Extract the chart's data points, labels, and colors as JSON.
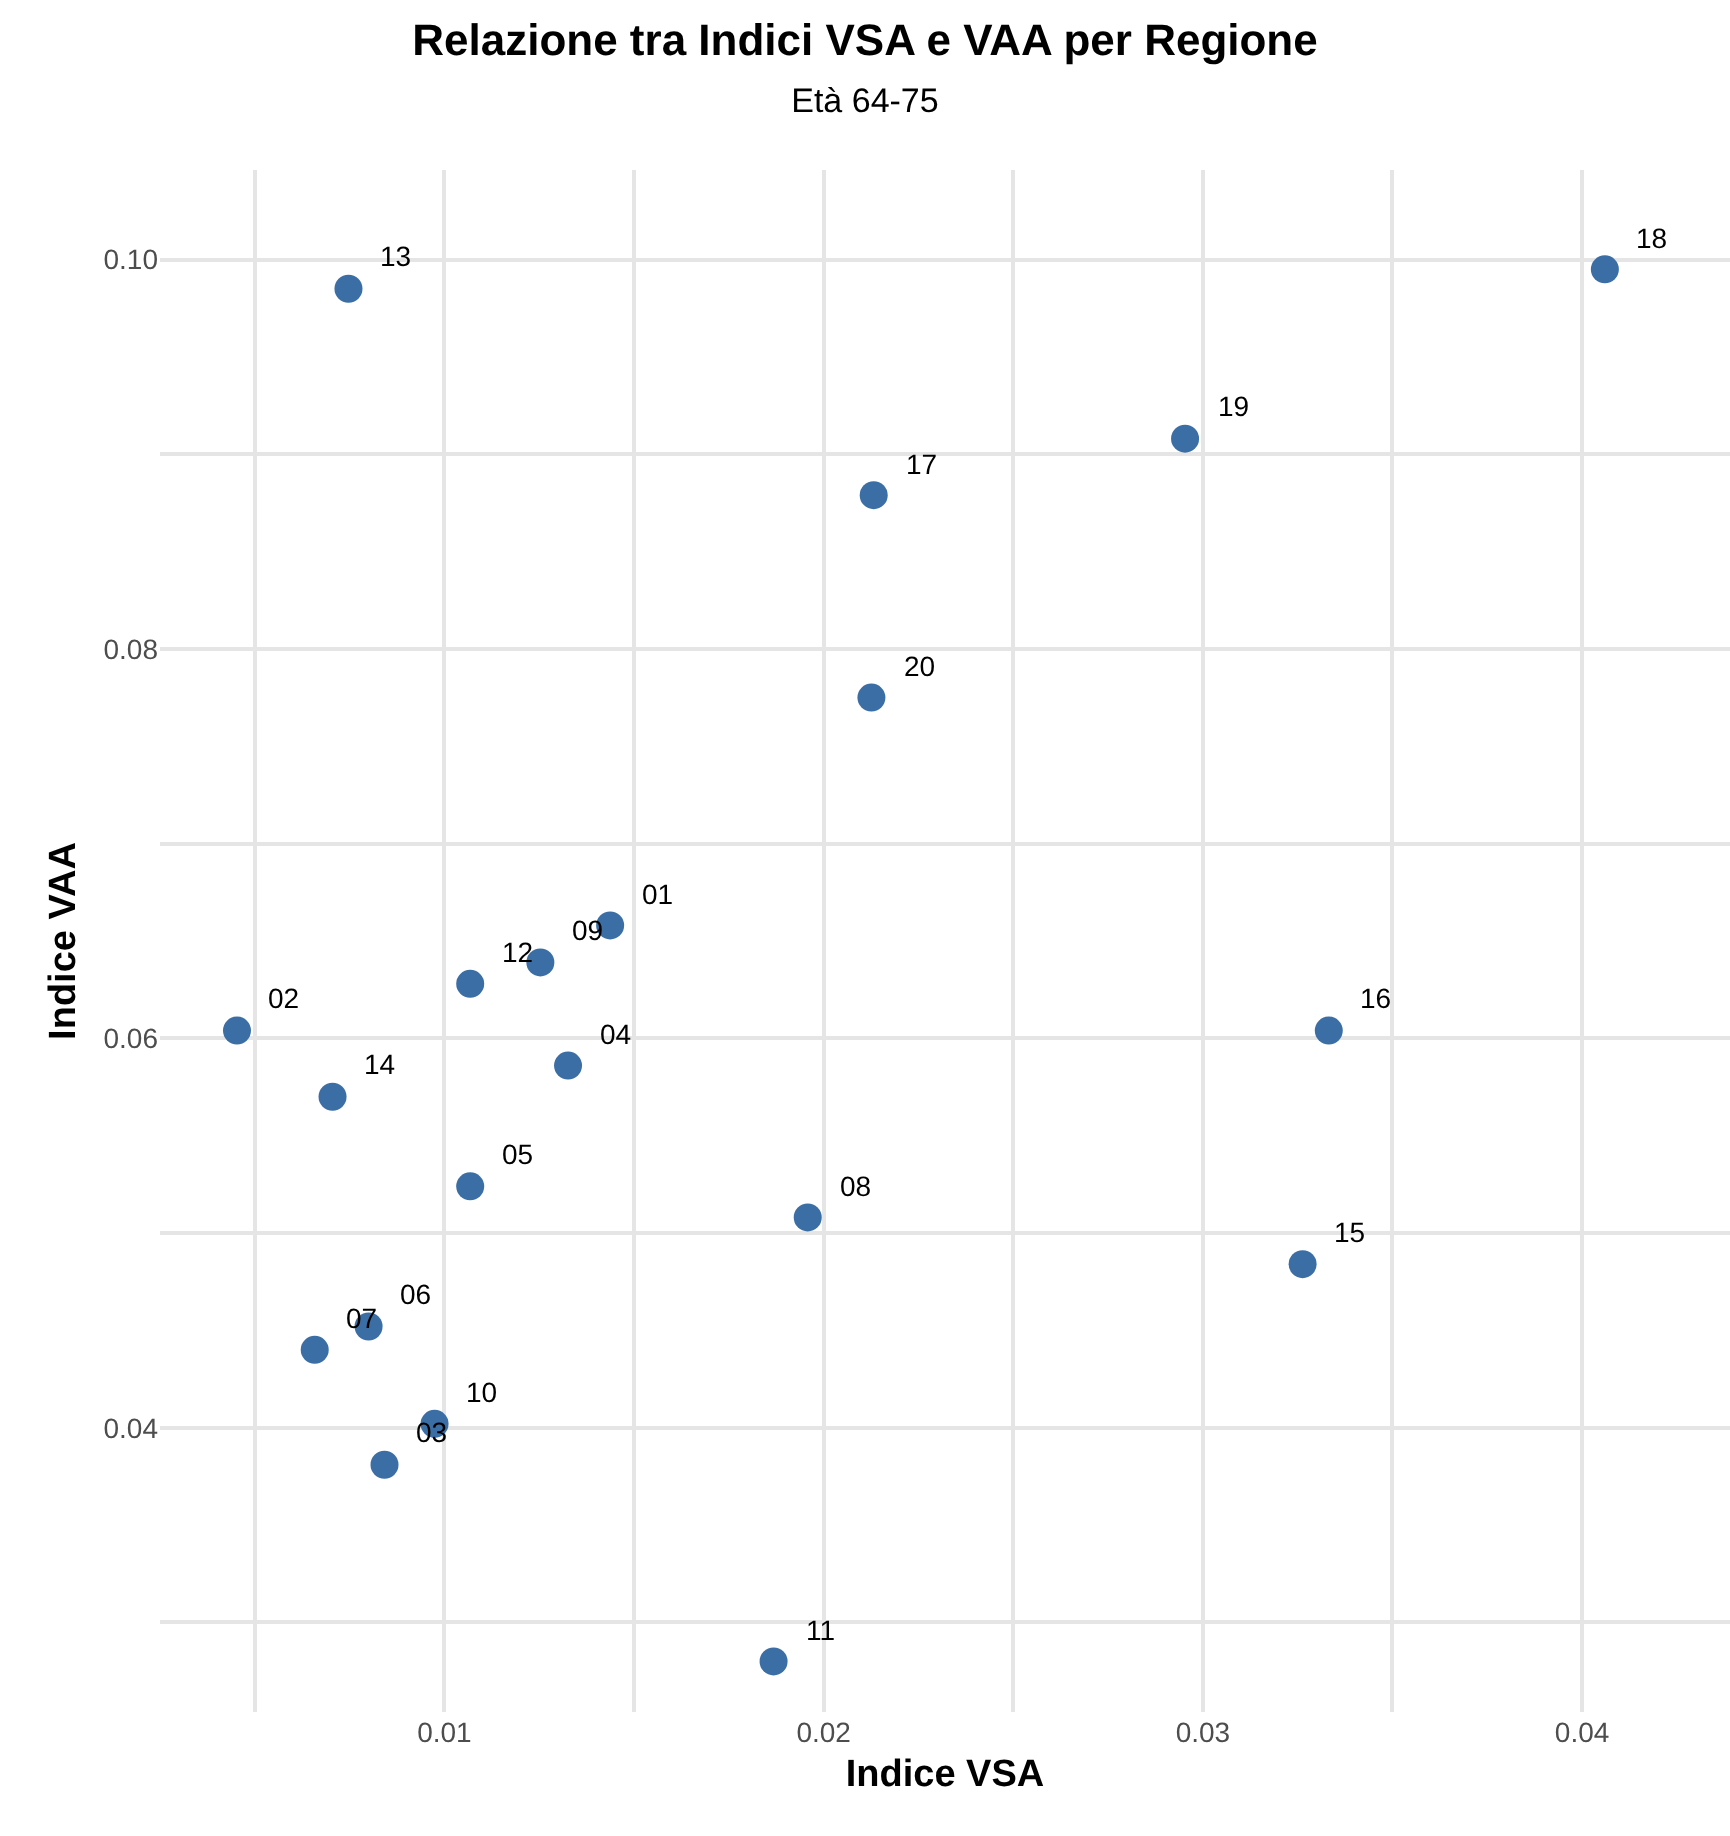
{
  "chart_data": {
    "type": "scatter",
    "title": "Relazione tra Indici VSA e VAA per Regione",
    "subtitle": "Età 64-75",
    "xlabel": "Indice VSA",
    "ylabel": "Indice VAA",
    "x": [
      0.01437,
      0.00453,
      0.00842,
      0.01326,
      0.01068,
      0.008,
      0.00658,
      0.01958,
      0.01253,
      0.00974,
      0.01868,
      0.01068,
      0.00747,
      0.00705,
      0.03263,
      0.03332,
      0.02132,
      0.0406,
      0.02953,
      0.02126
    ],
    "series": [
      {
        "color": "#3a6ea5",
        "values": [
          0.0658,
          0.0604,
          0.0381,
          0.0586,
          0.0524,
          0.0452,
          0.044,
          0.0508,
          0.0639,
          0.0402,
          0.028,
          0.0628,
          0.0985,
          0.057,
          0.0484,
          0.0604,
          0.0879,
          0.0995,
          0.0908,
          0.0775
        ]
      }
    ],
    "marker": "circle",
    "grid": true,
    "xlim": [
      0.0025,
      0.0439
    ],
    "ylim": [
      0.0254,
      0.1046
    ],
    "xticks": [
      {
        "value": 0.005,
        "label": null
      },
      0.01,
      {
        "value": 0.015,
        "label": null
      },
      0.02,
      {
        "value": 0.025,
        "label": null
      },
      0.03,
      {
        "value": 0.035,
        "label": null
      },
      0.04
    ],
    "yticks": [
      {
        "value": 0.03,
        "label": null
      },
      0.04,
      {
        "value": 0.05,
        "label": null
      },
      0.06,
      {
        "value": 0.07,
        "label": null
      },
      0.08,
      {
        "value": 0.09,
        "label": null
      },
      {
        "value": 0.1,
        "label": "0.10"
      }
    ],
    "annotations": [
      {
        "text": "01",
        "x": 0.01437,
        "y": 0.0658
      },
      {
        "text": "02",
        "x": 0.00453,
        "y": 0.0604
      },
      {
        "text": "03",
        "x": 0.00842,
        "y": 0.0381
      },
      {
        "text": "04",
        "x": 0.01326,
        "y": 0.0586
      },
      {
        "text": "05",
        "x": 0.01068,
        "y": 0.0524
      },
      {
        "text": "06",
        "x": 0.008,
        "y": 0.0452
      },
      {
        "text": "07",
        "x": 0.00658,
        "y": 0.044
      },
      {
        "text": "08",
        "x": 0.01958,
        "y": 0.0508
      },
      {
        "text": "09",
        "x": 0.01253,
        "y": 0.0639
      },
      {
        "text": "10",
        "x": 0.00974,
        "y": 0.0402
      },
      {
        "text": "11",
        "x": 0.01868,
        "y": 0.028
      },
      {
        "text": "12",
        "x": 0.01068,
        "y": 0.0628
      },
      {
        "text": "13",
        "x": 0.00747,
        "y": 0.0985
      },
      {
        "text": "14",
        "x": 0.00705,
        "y": 0.057
      },
      {
        "text": "15",
        "x": 0.03263,
        "y": 0.0484
      },
      {
        "text": "16",
        "x": 0.03332,
        "y": 0.0604
      },
      {
        "text": "17",
        "x": 0.02132,
        "y": 0.0879
      },
      {
        "text": "18",
        "x": 0.0406,
        "y": 0.0995
      },
      {
        "text": "19",
        "x": 0.02953,
        "y": 0.0908
      },
      {
        "text": "20",
        "x": 0.02126,
        "y": 0.0775
      }
    ]
  }
}
